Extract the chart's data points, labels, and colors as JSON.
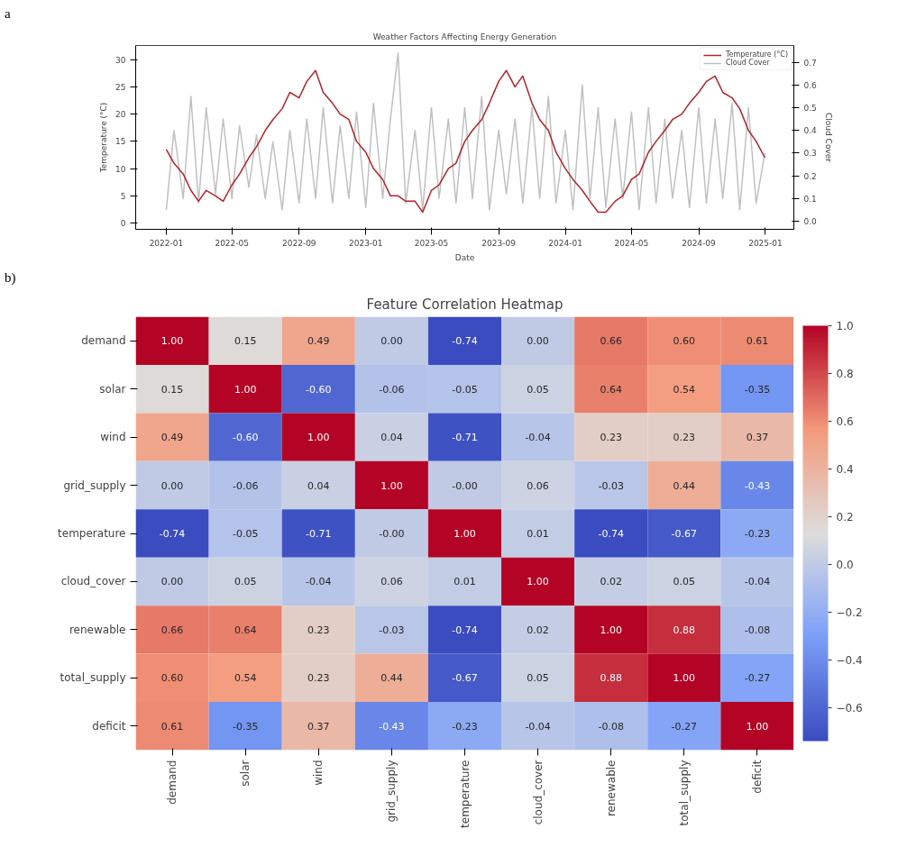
{
  "chart_data": [
    {
      "type": "line",
      "title": "Weather Factors Affecting Energy Generation",
      "xlabel": "Date",
      "ylabel": "Temperature (°C)",
      "y2label": "Cloud Cover",
      "annotations": [
        "a"
      ],
      "x": [
        "2022-01-01",
        "2022-01-15",
        "2022-02-01",
        "2022-02-15",
        "2022-03-01",
        "2022-03-15",
        "2022-04-01",
        "2022-04-15",
        "2022-05-01",
        "2022-05-15",
        "2022-06-01",
        "2022-06-15",
        "2022-07-01",
        "2022-07-15",
        "2022-08-01",
        "2022-08-15",
        "2022-09-01",
        "2022-09-15",
        "2022-10-01",
        "2022-10-15",
        "2022-11-01",
        "2022-11-15",
        "2022-12-01",
        "2022-12-15",
        "2023-01-01",
        "2023-01-15",
        "2023-02-01",
        "2023-02-15",
        "2023-03-01",
        "2023-03-15",
        "2023-04-01",
        "2023-04-15",
        "2023-05-01",
        "2023-05-15",
        "2023-06-01",
        "2023-06-15",
        "2023-07-01",
        "2023-07-15",
        "2023-08-01",
        "2023-08-15",
        "2023-09-01",
        "2023-09-15",
        "2023-10-01",
        "2023-10-15",
        "2023-11-01",
        "2023-11-15",
        "2023-12-01",
        "2023-12-15",
        "2024-01-01",
        "2024-01-15",
        "2024-02-01",
        "2024-02-15",
        "2024-03-01",
        "2024-03-15",
        "2024-04-01",
        "2024-04-15",
        "2024-05-01",
        "2024-05-15",
        "2024-06-01",
        "2024-06-15",
        "2024-07-01",
        "2024-07-15",
        "2024-08-01",
        "2024-08-15",
        "2024-09-01",
        "2024-09-15",
        "2024-10-01",
        "2024-10-15",
        "2024-11-01",
        "2024-11-15",
        "2024-12-01",
        "2024-12-15",
        "2024-12-31"
      ],
      "series": [
        {
          "name": "Temperature (°C)",
          "type": "line",
          "color": "#b2242a",
          "values": [
            13.5,
            11,
            9,
            6,
            4,
            6,
            5,
            4,
            7,
            9,
            12,
            14,
            17,
            19,
            21,
            24,
            23,
            26,
            28,
            24,
            22,
            20,
            19,
            15,
            13,
            10,
            8,
            5,
            5,
            4,
            4,
            2,
            6,
            7,
            10,
            11,
            15,
            17,
            19,
            22,
            26,
            28,
            25,
            27,
            22,
            19,
            17,
            13,
            10,
            8,
            6,
            4,
            2,
            2,
            4,
            5,
            8,
            9,
            13,
            15,
            17,
            19,
            20,
            22,
            24,
            26,
            27,
            24,
            23,
            21,
            17,
            15,
            12
          ]
        },
        {
          "name": "Cloud Cover",
          "type": "line",
          "axis": "y2",
          "color": "#c0c0c0",
          "values": [
            0.05,
            0.4,
            0.1,
            0.55,
            0.08,
            0.5,
            0.12,
            0.45,
            0.1,
            0.42,
            0.15,
            0.38,
            0.1,
            0.35,
            0.05,
            0.4,
            0.08,
            0.45,
            0.1,
            0.5,
            0.08,
            0.42,
            0.1,
            0.48,
            0.06,
            0.52,
            0.1,
            0.45,
            0.74,
            0.08,
            0.4,
            0.05,
            0.5,
            0.1,
            0.45,
            0.08,
            0.5,
            0.1,
            0.55,
            0.05,
            0.4,
            0.12,
            0.45,
            0.08,
            0.5,
            0.1,
            0.55,
            0.08,
            0.4,
            0.05,
            0.6,
            0.1,
            0.5,
            0.06,
            0.45,
            0.1,
            0.48,
            0.05,
            0.5,
            0.08,
            0.45,
            0.1,
            0.4,
            0.06,
            0.5,
            0.08,
            0.45,
            0.1,
            0.52,
            0.05,
            0.5,
            0.08,
            0.3
          ]
        }
      ],
      "xlim": [
        "2021-11-06",
        "2025-02-22"
      ],
      "xticks": [
        "2022-01",
        "2022-05",
        "2022-09",
        "2023-01",
        "2023-05",
        "2023-09",
        "2024-01",
        "2024-05",
        "2024-09",
        "2025-01"
      ],
      "ylim": [
        -1.15,
        32.6
      ],
      "yticks": [
        0,
        5,
        10,
        15,
        20,
        25,
        30
      ],
      "y2lim": [
        -0.036,
        0.774
      ],
      "y2ticks": [
        {
          "value": 0,
          "label": "0.0"
        },
        {
          "value": 0.1,
          "label": "0.1"
        },
        {
          "value": 0.2,
          "label": "0.2"
        },
        {
          "value": 0.3,
          "label": "0.3"
        },
        {
          "value": 0.4,
          "label": "0.4"
        },
        {
          "value": 0.5,
          "label": "0.5"
        },
        {
          "value": 0.6,
          "label": "0.6"
        },
        {
          "value": 0.7,
          "label": "0.7"
        }
      ],
      "grid": false,
      "legend": "top right",
      "marker": "none",
      "line_style": "solid"
    },
    {
      "type": "heatmap",
      "title": "Feature Correlation Heatmap",
      "annotations": [
        "b)"
      ],
      "categories": [
        "demand",
        "solar",
        "wind",
        "grid_supply",
        "temperature",
        "cloud_cover",
        "renewable",
        "total_supply",
        "deficit"
      ],
      "y_categories": [
        "demand",
        "solar",
        "wind",
        "grid_supply",
        "temperature",
        "cloud_cover",
        "renewable",
        "total_supply",
        "deficit"
      ],
      "cells": [
        [
          1.0,
          0.15,
          0.49,
          0.0,
          -0.74,
          0.0,
          0.66,
          0.6,
          0.61
        ],
        [
          0.15,
          1.0,
          -0.6,
          -0.06,
          -0.05,
          0.05,
          0.64,
          0.54,
          -0.35
        ],
        [
          0.49,
          -0.6,
          1.0,
          0.04,
          -0.71,
          -0.04,
          0.23,
          0.23,
          0.37
        ],
        [
          0.0,
          -0.06,
          0.04,
          1.0,
          -0.0,
          0.06,
          -0.03,
          0.44,
          -0.43
        ],
        [
          -0.74,
          -0.05,
          -0.71,
          -0.0,
          1.0,
          0.01,
          -0.74,
          -0.67,
          -0.23
        ],
        [
          0.0,
          0.05,
          -0.04,
          0.06,
          0.01,
          1.0,
          0.02,
          0.05,
          -0.04
        ],
        [
          0.66,
          0.64,
          0.23,
          -0.03,
          -0.74,
          0.02,
          1.0,
          0.88,
          -0.08
        ],
        [
          0.6,
          0.54,
          0.23,
          0.44,
          -0.67,
          0.05,
          0.88,
          1.0,
          -0.27
        ],
        [
          0.61,
          -0.35,
          0.37,
          -0.43,
          -0.23,
          -0.04,
          -0.08,
          -0.27,
          1.0
        ]
      ],
      "cell_labels": [
        [
          "1.00",
          "0.15",
          "0.49",
          "0.00",
          "-0.74",
          "0.00",
          "0.66",
          "0.60",
          "0.61"
        ],
        [
          "0.15",
          "1.00",
          "-0.60",
          "-0.06",
          "-0.05",
          "0.05",
          "0.64",
          "0.54",
          "-0.35"
        ],
        [
          "0.49",
          "-0.60",
          "1.00",
          "0.04",
          "-0.71",
          "-0.04",
          "0.23",
          "0.23",
          "0.37"
        ],
        [
          "0.00",
          "-0.06",
          "0.04",
          "1.00",
          "-0.00",
          "0.06",
          "-0.03",
          "0.44",
          "-0.43"
        ],
        [
          "-0.74",
          "-0.05",
          "-0.71",
          "-0.00",
          "1.00",
          "0.01",
          "-0.74",
          "-0.67",
          "-0.23"
        ],
        [
          "0.00",
          "0.05",
          "-0.04",
          "0.06",
          "0.01",
          "1.00",
          "0.02",
          "0.05",
          "-0.04"
        ],
        [
          "0.66",
          "0.64",
          "0.23",
          "-0.03",
          "-0.74",
          "0.02",
          "1.00",
          "0.88",
          "-0.08"
        ],
        [
          "0.60",
          "0.54",
          "0.23",
          "0.44",
          "-0.67",
          "0.05",
          "0.88",
          "1.00",
          "-0.27"
        ],
        [
          "0.61",
          "-0.35",
          "0.37",
          "-0.43",
          "-0.23",
          "-0.04",
          "-0.08",
          "-0.27",
          "1.00"
        ]
      ],
      "clim": [
        -0.74,
        1.0
      ],
      "cticks": [
        {
          "value": -0.6,
          "label": "−0.6"
        },
        {
          "value": -0.4,
          "label": "−0.4"
        },
        {
          "value": -0.2,
          "label": "−0.2"
        },
        {
          "value": 0,
          "label": "0.0"
        },
        {
          "value": 0.2,
          "label": "0.2"
        },
        {
          "value": 0.4,
          "label": "0.4"
        },
        {
          "value": 0.6,
          "label": "0.6"
        },
        {
          "value": 0.8,
          "label": "0.8"
        },
        {
          "value": 1.0,
          "label": "1.0"
        }
      ],
      "grid": false
    }
  ]
}
